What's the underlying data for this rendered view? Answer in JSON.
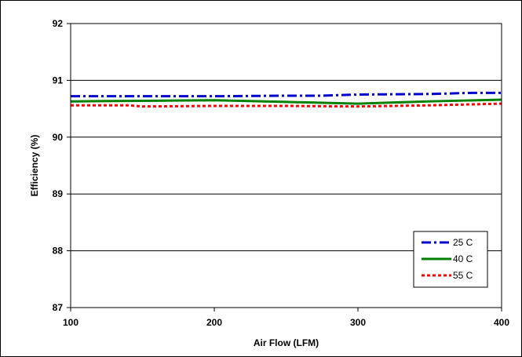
{
  "chart_data": {
    "type": "line",
    "title": "",
    "xlabel": "Air Flow (LFM)",
    "ylabel": "Efficiency (%)",
    "xlim": [
      100,
      400
    ],
    "ylim": [
      87,
      92
    ],
    "x_ticks": [
      "100",
      "200",
      "300",
      "400"
    ],
    "y_ticks": [
      "87",
      "88",
      "89",
      "90",
      "91",
      "92"
    ],
    "grid": "horizontal",
    "legend_position": "bottom-right",
    "series": [
      {
        "name": "25 C",
        "color": "#0000cc",
        "dash": "dash-dot",
        "x": [
          100,
          150,
          200,
          250,
          275,
          300,
          350,
          380,
          400
        ],
        "y": [
          90.72,
          90.72,
          90.72,
          90.73,
          90.73,
          90.75,
          90.76,
          90.78,
          90.78
        ]
      },
      {
        "name": "40 C",
        "color": "#008000",
        "dash": "solid",
        "x": [
          100,
          150,
          200,
          250,
          300,
          350,
          400
        ],
        "y": [
          90.63,
          90.64,
          90.65,
          90.62,
          90.59,
          90.63,
          90.66
        ]
      },
      {
        "name": "55 C",
        "color": "#ff0000",
        "dash": "dotted",
        "x": [
          100,
          140,
          150,
          200,
          250,
          300,
          350,
          400
        ],
        "y": [
          90.56,
          90.56,
          90.54,
          90.55,
          90.55,
          90.54,
          90.56,
          90.59
        ]
      }
    ]
  }
}
